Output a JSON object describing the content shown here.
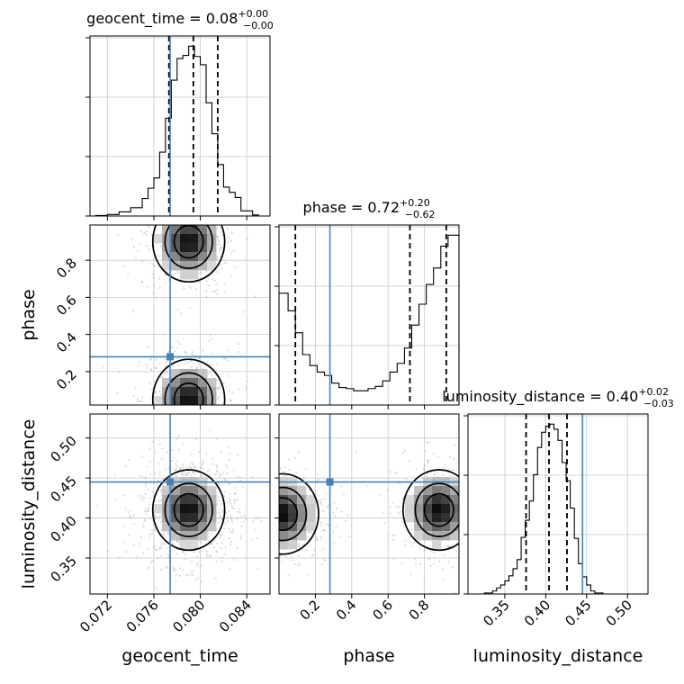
{
  "chart_data": {
    "type": "corner",
    "parameters": [
      "geocent_time",
      "phase",
      "luminosity_distance"
    ],
    "truth": {
      "geocent_time": 0.0774,
      "phase": 0.28,
      "luminosity_distance": 0.445
    },
    "grid": true,
    "panels": [
      {
        "kind": "hist",
        "param": "geocent_time",
        "title": {
          "prefix": "geocent_time = 0.08",
          "plus": "+0.00",
          "minus": "−0.00"
        },
        "xlim": [
          0.0705,
          0.086
        ],
        "quantiles": [
          0.0773,
          0.0794,
          0.0815
        ],
        "bin_edges": [
          0.071,
          0.072,
          0.073,
          0.074,
          0.075,
          0.0755,
          0.076,
          0.0765,
          0.077,
          0.0775,
          0.078,
          0.0785,
          0.079,
          0.0795,
          0.08,
          0.0805,
          0.081,
          0.0815,
          0.082,
          0.0825,
          0.083,
          0.0835,
          0.0845,
          0.085
        ],
        "counts": [
          0.5,
          1.5,
          4,
          8,
          17,
          27,
          37,
          62,
          95,
          132,
          153,
          156,
          165,
          155,
          147,
          110,
          80,
          50,
          28,
          23,
          18,
          5,
          1
        ]
      },
      {
        "kind": "hist",
        "param": "phase",
        "title": {
          "prefix": "phase = 0.72",
          "plus": "+0.20",
          "minus": "−0.62"
        },
        "xlim": [
          0.0,
          0.99
        ],
        "quantiles": [
          0.09,
          0.72,
          0.92
        ],
        "bin_edges": [
          0.0,
          0.05,
          0.09,
          0.13,
          0.17,
          0.21,
          0.25,
          0.29,
          0.33,
          0.37,
          0.41,
          0.45,
          0.49,
          0.53,
          0.57,
          0.61,
          0.65,
          0.69,
          0.73,
          0.77,
          0.81,
          0.85,
          0.89,
          0.93,
          0.99
        ],
        "counts": [
          102,
          86,
          66,
          46,
          36,
          30,
          27,
          20,
          16,
          15,
          13,
          13,
          15,
          17,
          22,
          30,
          38,
          52,
          73,
          92,
          110,
          125,
          145,
          155
        ]
      },
      {
        "kind": "hist",
        "param": "luminosity_distance",
        "title": {
          "prefix": "luminosity_distance = 0.40",
          "plus": "+0.02",
          "minus": "−0.03"
        },
        "xlim": [
          0.305,
          0.525
        ],
        "quantiles": [
          0.376,
          0.404,
          0.426
        ],
        "bin_edges": [
          0.325,
          0.335,
          0.34,
          0.345,
          0.35,
          0.355,
          0.36,
          0.365,
          0.37,
          0.375,
          0.38,
          0.385,
          0.39,
          0.395,
          0.4,
          0.405,
          0.41,
          0.415,
          0.42,
          0.425,
          0.43,
          0.435,
          0.44,
          0.445,
          0.45,
          0.455,
          0.46,
          0.47
        ],
        "counts": [
          1,
          3,
          6,
          9,
          13,
          18,
          25,
          34,
          56,
          73,
          92,
          118,
          145,
          160,
          166,
          168,
          163,
          152,
          130,
          112,
          85,
          55,
          30,
          17,
          9,
          3,
          1
        ]
      },
      {
        "kind": "hist2d",
        "x": "geocent_time",
        "y": "phase",
        "xlim": [
          0.0705,
          0.086
        ],
        "ylim": [
          0.02,
          0.99
        ],
        "modes": [
          {
            "x": 0.079,
            "y": 0.9
          },
          {
            "x": 0.079,
            "y": 0.05
          }
        ]
      },
      {
        "kind": "hist2d",
        "x": "geocent_time",
        "y": "luminosity_distance",
        "xlim": [
          0.0705,
          0.086
        ],
        "ylim": [
          0.305,
          0.53
        ],
        "modes": [
          {
            "x": 0.079,
            "y": 0.41
          }
        ]
      },
      {
        "kind": "hist2d",
        "x": "phase",
        "y": "luminosity_distance",
        "xlim": [
          0.0,
          0.99
        ],
        "ylim": [
          0.305,
          0.53
        ],
        "modes": [
          {
            "x": 0.88,
            "y": 0.41
          },
          {
            "x": 0.02,
            "y": 0.405
          }
        ]
      }
    ],
    "ticks": {
      "geocent_time": [
        0.072,
        0.076,
        0.08,
        0.084
      ],
      "phase": [
        0.2,
        0.4,
        0.6,
        0.8
      ],
      "luminosity_distance": [
        0.35,
        0.4,
        0.45,
        0.5
      ]
    },
    "tick_labels": {
      "geocent_time": [
        "0.072",
        "0.076",
        "0.080",
        "0.084"
      ],
      "phase": [
        "0.2",
        "0.4",
        "0.6",
        "0.8"
      ],
      "luminosity_distance": [
        "0.35",
        "0.40",
        "0.45",
        "0.50"
      ]
    },
    "axis_labels": {
      "x": [
        "geocent_time",
        "phase",
        "luminosity_distance"
      ],
      "y": [
        "phase",
        "luminosity_distance"
      ]
    }
  }
}
